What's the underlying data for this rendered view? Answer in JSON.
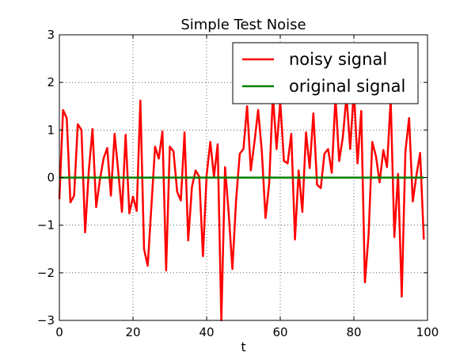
{
  "chart_data": {
    "type": "line",
    "title": "Simple Test Noise",
    "xlabel": "t",
    "ylabel": "",
    "xlim": [
      0,
      100
    ],
    "ylim": [
      -3,
      3
    ],
    "x_ticks": [
      0,
      20,
      40,
      60,
      80,
      100
    ],
    "y_ticks": [
      -3,
      -2,
      -1,
      0,
      1,
      2,
      3
    ],
    "x_tick_labels": [
      "0",
      "20",
      "40",
      "60",
      "80",
      "100"
    ],
    "y_tick_labels": [
      "−3",
      "−2",
      "−1",
      "0",
      "1",
      "2",
      "3"
    ],
    "grid": true,
    "legend_position": "top-right",
    "series": [
      {
        "name": "noisy signal",
        "color": "#ff0000",
        "x": [
          0,
          1,
          2,
          3,
          4,
          5,
          6,
          7,
          8,
          9,
          10,
          11,
          12,
          13,
          14,
          15,
          16,
          17,
          18,
          19,
          20,
          21,
          22,
          23,
          24,
          25,
          26,
          27,
          28,
          29,
          30,
          31,
          32,
          33,
          34,
          35,
          36,
          37,
          38,
          39,
          40,
          41,
          42,
          43,
          44,
          45,
          46,
          47,
          48,
          49,
          50,
          51,
          52,
          53,
          54,
          55,
          56,
          57,
          58,
          59,
          60,
          61,
          62,
          63,
          64,
          65,
          66,
          67,
          68,
          69,
          70,
          71,
          72,
          73,
          74,
          75,
          76,
          77,
          78,
          79,
          80,
          81,
          82,
          83,
          84,
          85,
          86,
          87,
          88,
          89,
          90,
          91,
          92,
          93,
          94,
          95,
          96,
          97,
          98,
          99
        ],
        "values": [
          -0.45,
          1.42,
          1.25,
          -0.52,
          -0.38,
          1.12,
          1.0,
          -1.15,
          0.15,
          1.02,
          -0.62,
          -0.05,
          0.4,
          0.62,
          -0.38,
          0.92,
          0.12,
          -0.72,
          0.9,
          -0.75,
          -0.4,
          -0.7,
          1.62,
          -1.5,
          -1.85,
          -0.6,
          0.65,
          0.4,
          0.97,
          -1.95,
          0.65,
          0.55,
          -0.3,
          -0.48,
          0.95,
          -1.32,
          -0.2,
          0.15,
          0.02,
          -1.65,
          0.05,
          0.75,
          0.02,
          0.7,
          -3.0,
          0.22,
          -0.75,
          -1.92,
          -0.48,
          0.5,
          0.6,
          1.5,
          0.15,
          0.75,
          1.42,
          0.55,
          -0.85,
          -0.12,
          1.75,
          0.6,
          1.6,
          0.35,
          0.3,
          0.92,
          -1.3,
          0.15,
          -0.72,
          0.95,
          0.2,
          1.35,
          -0.15,
          -0.22,
          0.5,
          0.6,
          0.1,
          1.7,
          0.35,
          0.85,
          1.72,
          0.6,
          1.85,
          0.3,
          1.4,
          -2.2,
          -1.2,
          0.75,
          0.45,
          -0.1,
          0.58,
          0.22,
          1.65,
          -1.25,
          0.08,
          -2.5,
          0.55,
          1.25,
          -0.5,
          0.05,
          0.52,
          -1.3
        ]
      },
      {
        "name": "original signal",
        "color": "#008000",
        "x": [
          0,
          99
        ],
        "values": [
          0,
          0
        ]
      }
    ]
  }
}
